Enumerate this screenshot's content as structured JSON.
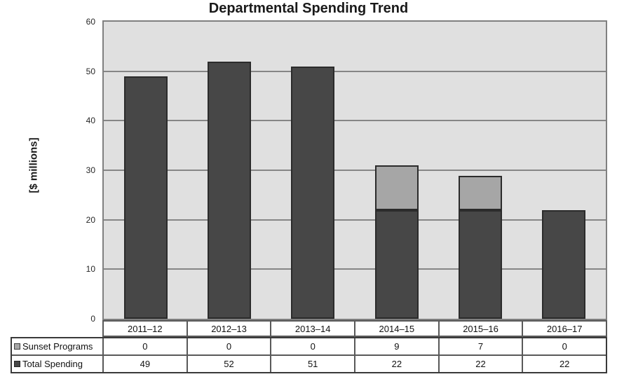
{
  "chart_data": {
    "type": "bar",
    "stacked": true,
    "title": "Departmental Spending Trend",
    "ylabel": "[$ millions]",
    "xlabel": "",
    "categories": [
      "2011–12",
      "2012–13",
      "2013–14",
      "2014–15",
      "2015–16",
      "2016–17"
    ],
    "series": [
      {
        "name": "Sunset Programs",
        "stack": "top",
        "values": [
          0,
          0,
          0,
          9,
          7,
          0
        ],
        "color": "#a6a6a6",
        "border_color": "#2b2b2b",
        "key_border_color": "#404040"
      },
      {
        "name": "Total Spending",
        "stack": "bottom",
        "values": [
          49,
          52,
          51,
          22,
          22,
          22
        ],
        "color": "#474747",
        "border_color": "#2b2b2b",
        "key_border_color": "#262626"
      }
    ],
    "ylim": [
      0,
      60
    ],
    "y_ticks": [
      0,
      10,
      20,
      30,
      40,
      50,
      60
    ],
    "grid": "horizontal",
    "gridline_color": "#868686",
    "plot_background": "#e0e0e0",
    "legend_position": "table-left"
  }
}
